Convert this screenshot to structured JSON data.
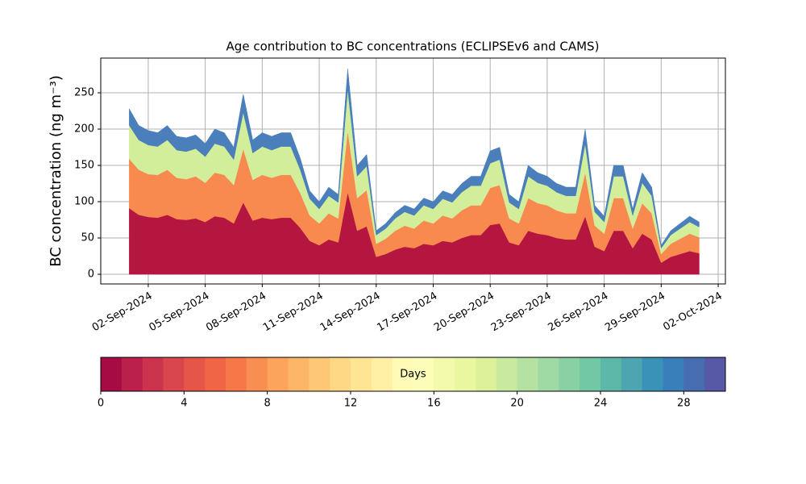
{
  "chart_data": {
    "type": "stacked_area",
    "title": "Age contribution to BC concentrations (ECLIPSEv6 and CAMS)",
    "y_label": "BC concentration (ng m⁻³)",
    "x": [
      0,
      0.5,
      1,
      1.5,
      2,
      2.5,
      3,
      3.5,
      4,
      4.5,
      5,
      5.5,
      6,
      6.5,
      7,
      7.5,
      8,
      8.5,
      9,
      9.5,
      10,
      10.5,
      11,
      11.5,
      12,
      12.5,
      13,
      13.5,
      14,
      14.5,
      15,
      15.5,
      16,
      16.5,
      17,
      17.5,
      18,
      18.5,
      19,
      19.5,
      20,
      20.5,
      21,
      21.5,
      22,
      22.5,
      23,
      23.5,
      24,
      24.5,
      25,
      25.5,
      26,
      26.5,
      27,
      27.5,
      28,
      28.5,
      29,
      29.5,
      30
    ],
    "series": [
      {
        "color": "#b5163f",
        "values": [
          91,
          82,
          79,
          78,
          82,
          76,
          75,
          77,
          72,
          80,
          78,
          70,
          99,
          74,
          78,
          76,
          78,
          78,
          64,
          46,
          40,
          48,
          44,
          113,
          60,
          66,
          24,
          28,
          34,
          38,
          36,
          42,
          40,
          46,
          44,
          50,
          54,
          54,
          68,
          70,
          44,
          40,
          60,
          56,
          54,
          50,
          48,
          48,
          80,
          38,
          32,
          60,
          60,
          36,
          56,
          48,
          16,
          24,
          28,
          32,
          29
        ]
      },
      {
        "color": "#f88a50",
        "values": [
          68,
          62,
          59,
          59,
          62,
          57,
          56,
          58,
          54,
          60,
          59,
          53,
          74,
          56,
          59,
          57,
          59,
          59,
          48,
          35,
          30,
          36,
          33,
          85,
          45,
          50,
          18,
          21,
          26,
          29,
          27,
          32,
          30,
          35,
          33,
          38,
          41,
          41,
          51,
          53,
          33,
          30,
          45,
          42,
          41,
          38,
          36,
          36,
          60,
          29,
          24,
          45,
          45,
          27,
          42,
          36,
          12,
          18,
          21,
          24,
          22
        ]
      },
      {
        "color": "#d3ee9b",
        "values": [
          46,
          41,
          40,
          39,
          41,
          38,
          38,
          38,
          36,
          40,
          39,
          35,
          50,
          37,
          39,
          38,
          39,
          39,
          32,
          23,
          20,
          24,
          22,
          57,
          30,
          33,
          12,
          14,
          17,
          19,
          18,
          21,
          20,
          23,
          22,
          25,
          27,
          27,
          34,
          35,
          22,
          20,
          30,
          28,
          27,
          25,
          24,
          24,
          40,
          19,
          16,
          30,
          30,
          18,
          28,
          24,
          8,
          12,
          14,
          16,
          14
        ]
      },
      {
        "color": "#4a7fbc",
        "values": [
          23,
          20,
          20,
          19,
          20,
          19,
          19,
          19,
          18,
          20,
          19,
          17,
          25,
          18,
          19,
          19,
          19,
          19,
          16,
          11,
          10,
          12,
          11,
          28,
          15,
          16,
          6,
          7,
          8,
          9,
          9,
          10,
          10,
          11,
          11,
          12,
          13,
          13,
          17,
          17,
          11,
          10,
          15,
          14,
          13,
          12,
          12,
          12,
          20,
          9,
          8,
          15,
          15,
          9,
          14,
          12,
          4,
          6,
          7,
          8,
          7
        ]
      }
    ],
    "xlim": [
      -1.5,
      31.38
    ],
    "xticks": [
      {
        "value": 1,
        "label": "02-Sep-2024"
      },
      {
        "value": 4,
        "label": "05-Sep-2024"
      },
      {
        "value": 7,
        "label": "08-Sep-2024"
      },
      {
        "value": 10,
        "label": "11-Sep-2024"
      },
      {
        "value": 13,
        "label": "14-Sep-2024"
      },
      {
        "value": 16,
        "label": "17-Sep-2024"
      },
      {
        "value": 19,
        "label": "20-Sep-2024"
      },
      {
        "value": 22,
        "label": "23-Sep-2024"
      },
      {
        "value": 25,
        "label": "26-Sep-2024"
      },
      {
        "value": 28,
        "label": "29-Sep-2024"
      },
      {
        "value": 31,
        "label": "02-Oct-2024"
      }
    ],
    "ylim": [
      -13.3,
      297.8
    ],
    "yticks": [
      0,
      50,
      100,
      150,
      200,
      250
    ],
    "grid": true,
    "colorbar": {
      "label": "Days",
      "lim": [
        0,
        30
      ],
      "ticks": [
        0,
        4,
        8,
        12,
        16,
        20,
        24,
        28
      ],
      "colormap": [
        "#9e0142",
        "#d53e4f",
        "#f46d43",
        "#fdae61",
        "#fee08b",
        "#ffffbf",
        "#e6f598",
        "#abdda4",
        "#66c2a5",
        "#3288bd",
        "#5e4fa2"
      ]
    }
  }
}
